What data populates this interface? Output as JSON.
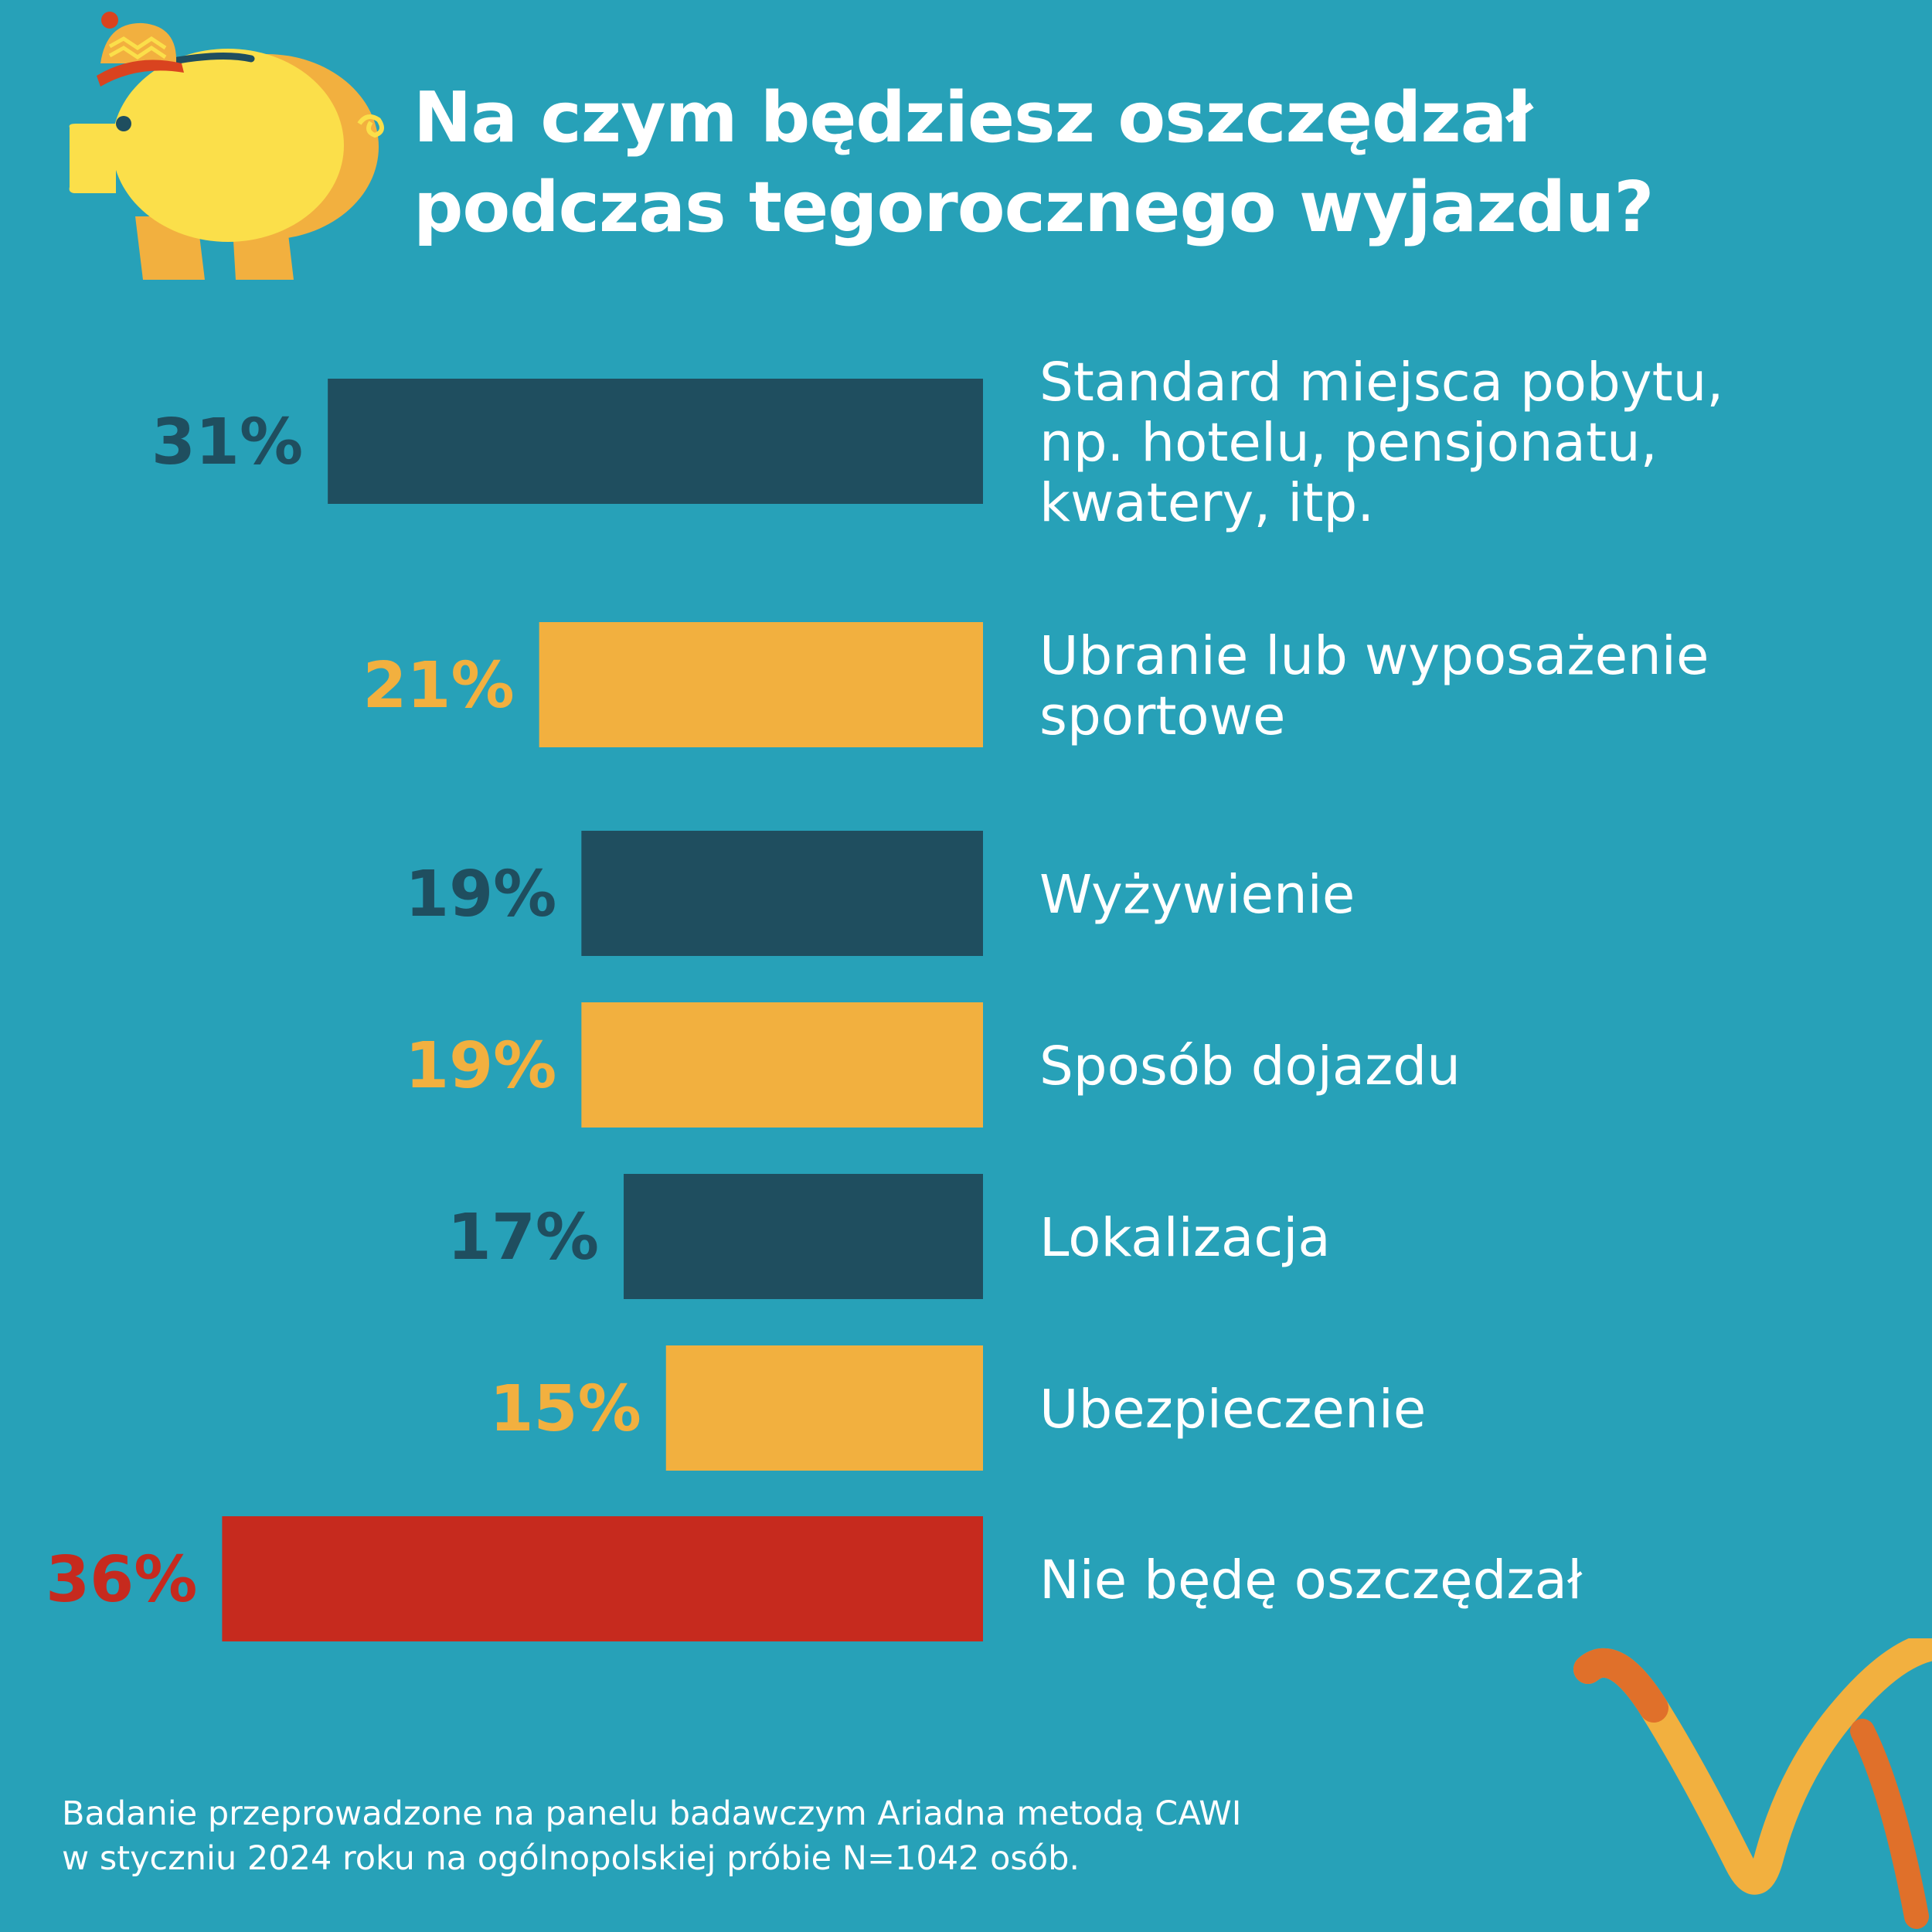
{
  "title": {
    "line1": "Na czym będziesz oszczędzał",
    "line2": "podczas tegorocznego wyjazdu?"
  },
  "footnote": {
    "line1": "Badanie przeprowadzone na panelu badawczym Ariadna metodą CAWI",
    "line2": "w styczniu 2024 roku na ogólnopolskiej próbie N=1042 osób."
  },
  "colors": {
    "background": "#27a1b8",
    "dark": "#1f4e5f",
    "yellow": "#f2b03f",
    "red": "#c62a1e",
    "text": "#ffffff"
  },
  "icons": [
    "piggy-bank-with-winter-hat-icon",
    "ariadna-logo-swoosh"
  ],
  "chart_data": {
    "type": "bar",
    "orientation": "horizontal",
    "value_unit": "%",
    "categories": [
      [
        "Standard miejsca pobytu,",
        "np. hotelu, pensjonatu,",
        "kwatery, itp."
      ],
      [
        "Ubranie lub wyposażenie",
        "sportowe"
      ],
      [
        "Wyżywienie"
      ],
      [
        "Sposób dojazdu"
      ],
      [
        "Lokalizacja"
      ],
      [
        "Ubezpieczenie"
      ],
      [
        "Nie będę oszczędzał"
      ]
    ],
    "values": [
      31,
      21,
      19,
      19,
      17,
      15,
      36
    ],
    "value_labels": [
      "31%",
      "21%",
      "19%",
      "19%",
      "17%",
      "15%",
      "36%"
    ],
    "bar_colors": [
      "#1f4e5f",
      "#f2b03f",
      "#1f4e5f",
      "#f2b03f",
      "#1f4e5f",
      "#f2b03f",
      "#c62a1e"
    ],
    "grid": false,
    "legend": false
  }
}
